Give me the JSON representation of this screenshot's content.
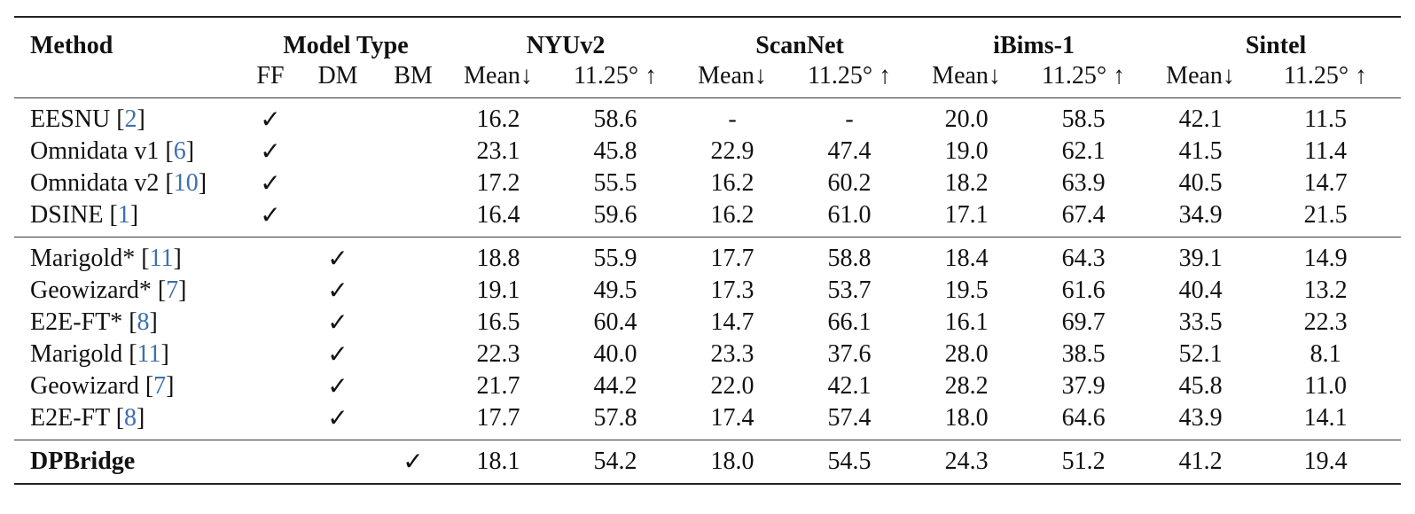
{
  "header": {
    "method": "Method",
    "model_type": "Model Type",
    "model_type_sub": [
      "FF",
      "DM",
      "BM"
    ],
    "datasets": [
      "NYUv2",
      "ScanNet",
      "iBims-1",
      "Sintel"
    ],
    "metric_mean": "Mean↓",
    "metric_angle": "11.25° ↑"
  },
  "groups": [
    {
      "rows": [
        {
          "name": "EESNU [",
          "ref": "2",
          "close": "]",
          "ff": "✓",
          "dm": "",
          "bm": "",
          "values": [
            "16.2",
            "58.6",
            "-",
            "-",
            "20.0",
            "58.5",
            "42.1",
            "11.5"
          ]
        },
        {
          "name": "Omnidata v1 [",
          "ref": "6",
          "close": "]",
          "ff": "✓",
          "dm": "",
          "bm": "",
          "values": [
            "23.1",
            "45.8",
            "22.9",
            "47.4",
            "19.0",
            "62.1",
            "41.5",
            "11.4"
          ]
        },
        {
          "name": "Omnidata v2 [",
          "ref": "10",
          "close": "]",
          "ff": "✓",
          "dm": "",
          "bm": "",
          "values": [
            "17.2",
            "55.5",
            "16.2",
            "60.2",
            "18.2",
            "63.9",
            "40.5",
            "14.7"
          ]
        },
        {
          "name": "DSINE [",
          "ref": "1",
          "close": "]",
          "ff": "✓",
          "dm": "",
          "bm": "",
          "values": [
            "16.4",
            "59.6",
            "16.2",
            "61.0",
            "17.1",
            "67.4",
            "34.9",
            "21.5"
          ]
        }
      ]
    },
    {
      "rows": [
        {
          "name": "Marigold* [",
          "ref": "11",
          "close": "]",
          "ff": "",
          "dm": "✓",
          "bm": "",
          "values": [
            "18.8",
            "55.9",
            "17.7",
            "58.8",
            "18.4",
            "64.3",
            "39.1",
            "14.9"
          ]
        },
        {
          "name": "Geowizard* [",
          "ref": "7",
          "close": "]",
          "ff": "",
          "dm": "✓",
          "bm": "",
          "values": [
            "19.1",
            "49.5",
            "17.3",
            "53.7",
            "19.5",
            "61.6",
            "40.4",
            "13.2"
          ]
        },
        {
          "name": "E2E-FT* [",
          "ref": "8",
          "close": "]",
          "ff": "",
          "dm": "✓",
          "bm": "",
          "values": [
            "16.5",
            "60.4",
            "14.7",
            "66.1",
            "16.1",
            "69.7",
            "33.5",
            "22.3"
          ]
        },
        {
          "name": "Marigold [",
          "ref": "11",
          "close": "]",
          "ff": "",
          "dm": "✓",
          "bm": "",
          "values": [
            "22.3",
            "40.0",
            "23.3",
            "37.6",
            "28.0",
            "38.5",
            "52.1",
            "8.1"
          ]
        },
        {
          "name": "Geowizard [",
          "ref": "7",
          "close": "]",
          "ff": "",
          "dm": "✓",
          "bm": "",
          "values": [
            "21.7",
            "44.2",
            "22.0",
            "42.1",
            "28.2",
            "37.9",
            "45.8",
            "11.0"
          ]
        },
        {
          "name": "E2E-FT [",
          "ref": "8",
          "close": "]",
          "ff": "",
          "dm": "✓",
          "bm": "",
          "values": [
            "17.7",
            "57.8",
            "17.4",
            "57.4",
            "18.0",
            "64.6",
            "43.9",
            "14.1"
          ]
        }
      ]
    },
    {
      "rows": [
        {
          "name": "DPBridge",
          "ref": "",
          "close": "",
          "bold": true,
          "ff": "",
          "dm": "",
          "bm": "✓",
          "values": [
            "18.1",
            "54.2",
            "18.0",
            "54.5",
            "24.3",
            "51.2",
            "41.2",
            "19.4"
          ]
        }
      ]
    }
  ]
}
